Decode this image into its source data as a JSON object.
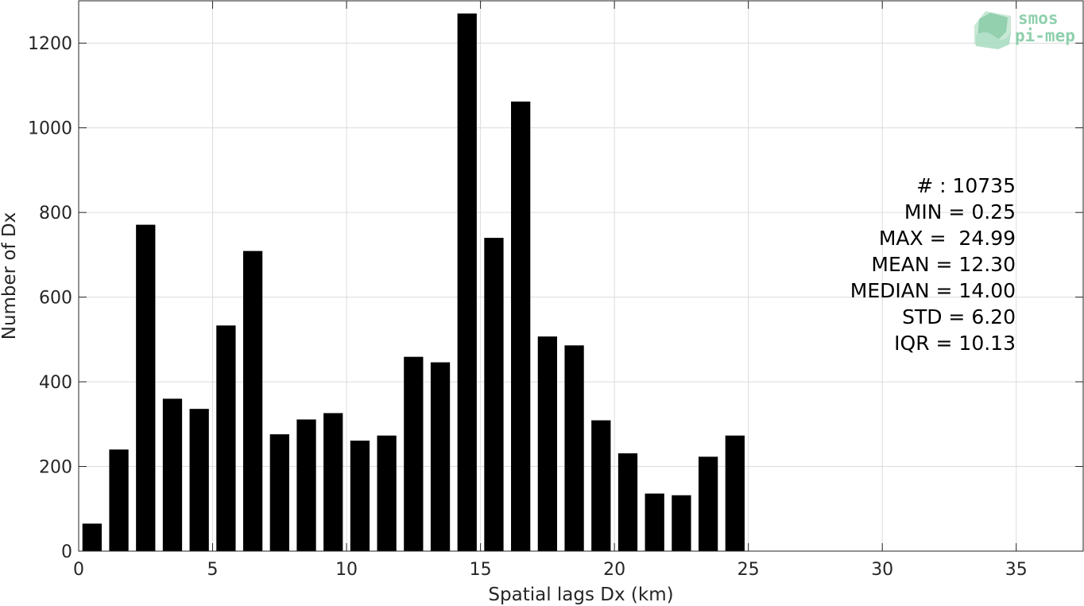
{
  "chart_data": {
    "type": "bar",
    "xlabel": "Spatial lags Dx (km)",
    "ylabel": "Number of Dx",
    "xlim": [
      0,
      37.5
    ],
    "ylim": [
      0,
      1300
    ],
    "x_ticks": [
      0,
      5,
      10,
      15,
      20,
      25,
      30,
      35
    ],
    "y_ticks": [
      0,
      200,
      400,
      600,
      800,
      1000,
      1200
    ],
    "x_tick_labels": [
      "0",
      "5",
      "10",
      "15",
      "20",
      "25",
      "30",
      "35"
    ],
    "y_tick_labels": [
      "0",
      "200",
      "400",
      "600",
      "800",
      "1000",
      "1200"
    ],
    "grid": true,
    "bar_color": "#000000",
    "bar_width": 0.72,
    "x": [
      0.5,
      1.5,
      2.5,
      3.5,
      4.5,
      5.5,
      6.5,
      7.5,
      8.5,
      9.5,
      10.5,
      11.5,
      12.5,
      13.5,
      14.5,
      15.5,
      16.5,
      17.5,
      18.5,
      19.5,
      20.5,
      21.5,
      22.5,
      23.5,
      24.5
    ],
    "values": [
      65,
      240,
      771,
      360,
      336,
      533,
      709,
      276,
      311,
      326,
      261,
      273,
      459,
      446,
      1270,
      740,
      1062,
      507,
      486,
      309,
      231,
      136,
      132,
      223,
      273
    ],
    "annotations": [
      "# : 10735",
      "MIN = 0.25",
      "MAX =  24.99",
      "MEAN = 12.30",
      "MEDIAN = 14.00",
      "STD = 6.20",
      "IQR = 10.13"
    ]
  },
  "logo": {
    "line1": "smos",
    "line2": "pi-mep",
    "color": "#8fd0ad"
  }
}
